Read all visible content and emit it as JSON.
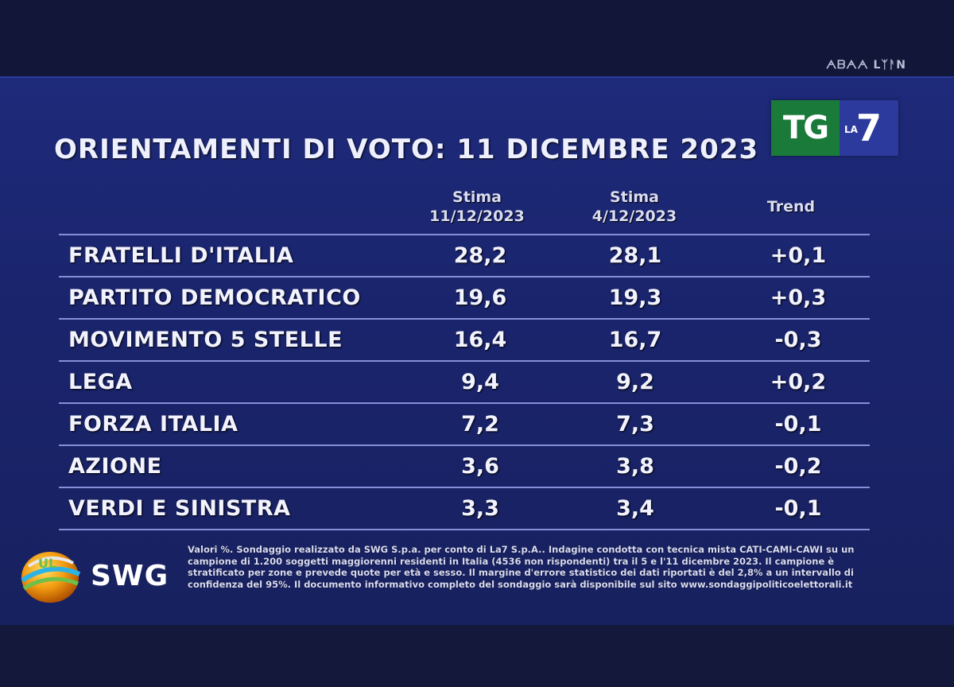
{
  "corner_mark": "ᗅᗷᗅᗅ LᛉᚨN",
  "title": "ORIENTAMENTI DI VOTO: 11 DICEMBRE 2023",
  "logo": {
    "tg": "TG",
    "la": "LA",
    "seven": "7"
  },
  "headers": {
    "col1": "Stima\n11/12/2023",
    "col2": "Stima\n4/12/2023",
    "col3": "Trend"
  },
  "rows": [
    {
      "party": "FRATELLI D'ITALIA",
      "v1": "28,2",
      "v2": "28,1",
      "trend": "+0,1"
    },
    {
      "party": "PARTITO DEMOCRATICO",
      "v1": "19,6",
      "v2": "19,3",
      "trend": "+0,3"
    },
    {
      "party": "MOVIMENTO 5 STELLE",
      "v1": "16,4",
      "v2": "16,7",
      "trend": "-0,3"
    },
    {
      "party": "LEGA",
      "v1": "9,4",
      "v2": "9,2",
      "trend": "+0,2"
    },
    {
      "party": "FORZA ITALIA",
      "v1": "7,2",
      "v2": "7,3",
      "trend": "-0,1"
    },
    {
      "party": "AZIONE",
      "v1": "3,6",
      "v2": "3,8",
      "trend": "-0,2"
    },
    {
      "party": "VERDI E SINISTRA",
      "v1": "3,3",
      "v2": "3,4",
      "trend": "-0,1"
    }
  ],
  "swg": {
    "name": "SWG",
    "globe_label": "UL"
  },
  "footnote": "Valori %. Sondaggio realizzato da SWG S.p.a. per conto di La7 S.p.A.. Indagine condotta con tecnica mista CATI-CAMI-CAWI su un campione di 1.200 soggetti maggiorenni residenti in Italia (4536 non rispondenti) tra il 5 e l'11 dicembre 2023. Il campione è stratificato per zone e prevede quote per età e sesso. Il margine d'errore statistico dei dati riportati è del 2,8% a un intervallo di confidenza del 95%. Il documento informativo completo del sondaggio sarà disponibile sul sito www.sondaggipoliticoelettorali.it",
  "colors": {
    "screen_bg": "#1e2a7a",
    "tg_green": "#1a7a3a",
    "la7_blue": "#2b3a9c",
    "rule": "#8690d8"
  }
}
